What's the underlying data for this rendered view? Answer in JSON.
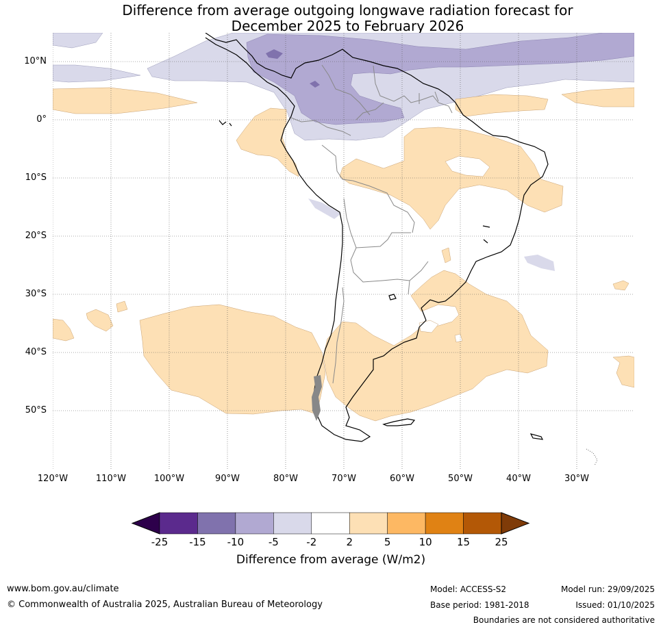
{
  "title": {
    "line1": "Difference from average outgoing longwave radiation forecast for",
    "line2": "December 2025 to February 2026"
  },
  "lat_labels": [
    "10°N",
    "0°",
    "10°S",
    "20°S",
    "30°S",
    "40°S",
    "50°S"
  ],
  "lon_labels": [
    "120°W",
    "110°W",
    "100°W",
    "90°W",
    "80°W",
    "70°W",
    "60°W",
    "50°W",
    "40°W",
    "30°W"
  ],
  "colorbar": {
    "ticks": [
      "-25",
      "-15",
      "-10",
      "-5",
      "-2",
      "2",
      "5",
      "10",
      "15",
      "25"
    ],
    "colors": [
      "#2d004b",
      "#5b2a8d",
      "#8072ad",
      "#b1a9d2",
      "#d9d9ea",
      "#ffffff",
      "#fde0b5",
      "#fdb863",
      "#e08214",
      "#b35806",
      "#7f3b08"
    ],
    "label": "Difference from average (W/m2)"
  },
  "footer": {
    "website": "www.bom.gov.au/climate",
    "copyright": "© Commonwealth of Australia 2025, Australian Bureau of Meteorology",
    "model": "Model: ACCESS-S2",
    "base_period": "Base period: 1981-2018",
    "model_run": "Model run: 29/09/2025",
    "issued": "Issued: 01/10/2025",
    "disclaimer": "Boundaries are not considered authoritative"
  }
}
